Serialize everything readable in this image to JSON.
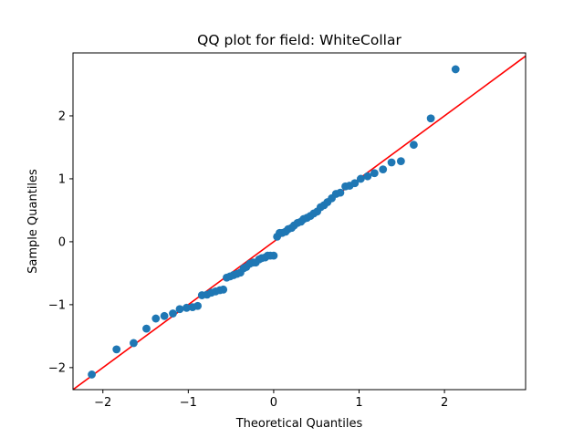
{
  "chart_data": {
    "type": "scatter",
    "title": "QQ plot for field: WhiteCollar",
    "xlabel": "Theoretical Quantiles",
    "ylabel": "Sample Quantiles",
    "xlim": [
      -2.35,
      2.95
    ],
    "ylim": [
      -2.35,
      3.0
    ],
    "xticks": [
      -2,
      -1,
      0,
      1,
      2
    ],
    "yticks": [
      -2,
      -1,
      0,
      1,
      2
    ],
    "grid": false,
    "legend": "none",
    "colors": {
      "points": "#1f77b4",
      "reference_line": "#ff0000"
    },
    "reference_line": {
      "slope": 1,
      "intercept": 0
    },
    "points": [
      [
        -2.13,
        -2.11
      ],
      [
        -1.84,
        -1.71
      ],
      [
        -1.64,
        -1.61
      ],
      [
        -1.49,
        -1.38
      ],
      [
        -1.38,
        -1.22
      ],
      [
        -1.28,
        -1.18
      ],
      [
        -1.18,
        -1.14
      ],
      [
        -1.1,
        -1.07
      ],
      [
        -1.02,
        -1.05
      ],
      [
        -0.95,
        -1.04
      ],
      [
        -0.89,
        -1.02
      ],
      [
        -0.84,
        -0.85
      ],
      [
        -0.78,
        -0.84
      ],
      [
        -0.73,
        -0.81
      ],
      [
        -0.68,
        -0.79
      ],
      [
        -0.63,
        -0.77
      ],
      [
        -0.59,
        -0.76
      ],
      [
        -0.55,
        -0.57
      ],
      [
        -0.51,
        -0.55
      ],
      [
        -0.47,
        -0.53
      ],
      [
        -0.43,
        -0.51
      ],
      [
        -0.39,
        -0.49
      ],
      [
        -0.35,
        -0.42
      ],
      [
        -0.32,
        -0.4
      ],
      [
        -0.28,
        -0.35
      ],
      [
        -0.24,
        -0.33
      ],
      [
        -0.21,
        -0.33
      ],
      [
        -0.17,
        -0.28
      ],
      [
        -0.14,
        -0.26
      ],
      [
        -0.1,
        -0.25
      ],
      [
        -0.07,
        -0.22
      ],
      [
        -0.04,
        -0.22
      ],
      [
        0.0,
        -0.22
      ],
      [
        0.04,
        0.08
      ],
      [
        0.07,
        0.14
      ],
      [
        0.1,
        0.14
      ],
      [
        0.14,
        0.16
      ],
      [
        0.17,
        0.2
      ],
      [
        0.21,
        0.22
      ],
      [
        0.24,
        0.26
      ],
      [
        0.28,
        0.3
      ],
      [
        0.32,
        0.32
      ],
      [
        0.35,
        0.36
      ],
      [
        0.39,
        0.38
      ],
      [
        0.43,
        0.41
      ],
      [
        0.47,
        0.45
      ],
      [
        0.51,
        0.48
      ],
      [
        0.55,
        0.55
      ],
      [
        0.59,
        0.58
      ],
      [
        0.63,
        0.63
      ],
      [
        0.68,
        0.69
      ],
      [
        0.73,
        0.76
      ],
      [
        0.78,
        0.78
      ],
      [
        0.84,
        0.88
      ],
      [
        0.89,
        0.89
      ],
      [
        0.95,
        0.93
      ],
      [
        1.02,
        1.0
      ],
      [
        1.1,
        1.04
      ],
      [
        1.18,
        1.09
      ],
      [
        1.28,
        1.15
      ],
      [
        1.38,
        1.26
      ],
      [
        1.49,
        1.28
      ],
      [
        1.64,
        1.54
      ],
      [
        1.84,
        1.96
      ],
      [
        2.13,
        2.74
      ]
    ]
  }
}
